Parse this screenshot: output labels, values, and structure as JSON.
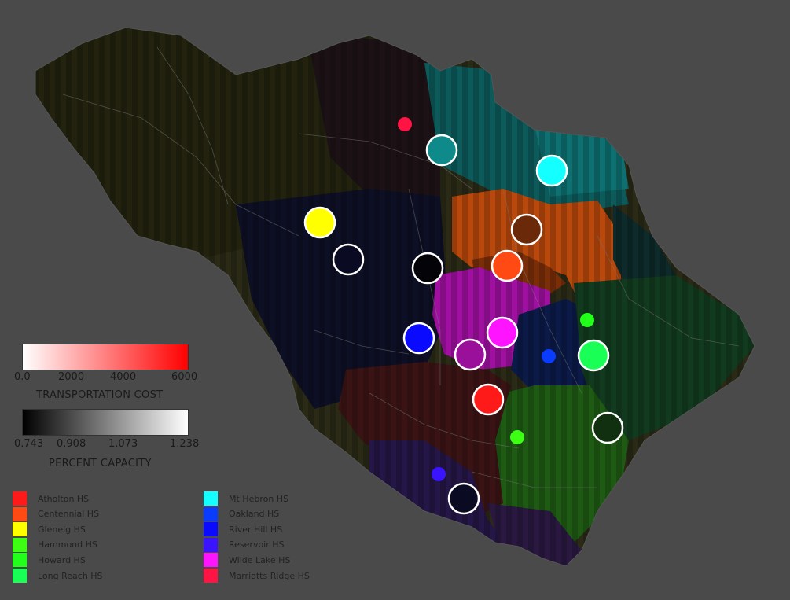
{
  "legend_cost": {
    "title": "TRANSPORTATION COST",
    "ticks": [
      "0.0",
      "2000",
      "4000",
      "6000"
    ]
  },
  "legend_capacity": {
    "title": "PERCENT  CAPACITY",
    "ticks": [
      "0.743",
      "0.908",
      "1.073",
      "1.238"
    ]
  },
  "schools_left": [
    {
      "label": "Atholton HS",
      "color": "#ff1a1a"
    },
    {
      "label": "Centennial HS",
      "color": "#ff4a14"
    },
    {
      "label": "Glenelg HS",
      "color": "#ffff00"
    },
    {
      "label": "Hammond HS",
      "color": "#3cff14"
    },
    {
      "label": "Howard HS",
      "color": "#22ff1a"
    },
    {
      "label": "Long Reach HS",
      "color": "#19ff55"
    }
  ],
  "schools_right": [
    {
      "label": "Mt Hebron HS",
      "color": "#14ffff"
    },
    {
      "label": "Oakland HS",
      "color": "#0a3cff"
    },
    {
      "label": "River Hill HS",
      "color": "#0a0aff"
    },
    {
      "label": "Reservoir HS",
      "color": "#3a14ff"
    },
    {
      "label": "Wilde Lake HS",
      "color": "#ff14ff"
    },
    {
      "label": "Marriotts Ridge HS",
      "color": "#ff1444"
    }
  ],
  "markers": [
    {
      "school": "Marriotts Ridge HS",
      "color": "#ff1444",
      "size": "small",
      "outline": false
    },
    {
      "school": "Mt Hebron HS",
      "color": "#0f8a8a",
      "size": "large",
      "outline": true
    },
    {
      "school": "Mt Hebron HS",
      "color": "#14ffff",
      "size": "large",
      "outline": true
    },
    {
      "school": "Glenelg HS",
      "color": "#ffff00",
      "size": "large",
      "outline": true
    },
    {
      "school": "",
      "color": "#0a0a22",
      "size": "large",
      "outline": true
    },
    {
      "school": "",
      "color": "#040408",
      "size": "large",
      "outline": true
    },
    {
      "school": "",
      "color": "#6a2a0a",
      "size": "large",
      "outline": true
    },
    {
      "school": "Centennial HS",
      "color": "#ff4a14",
      "size": "large",
      "outline": true
    },
    {
      "school": "River Hill HS",
      "color": "#0a0aff",
      "size": "large",
      "outline": true
    },
    {
      "school": "Wilde Lake HS",
      "color": "#ff14ff",
      "size": "large",
      "outline": true
    },
    {
      "school": "",
      "color": "#9a109a",
      "size": "large",
      "outline": true
    },
    {
      "school": "Howard HS",
      "color": "#22ff1a",
      "size": "small",
      "outline": false
    },
    {
      "school": "Oakland HS",
      "color": "#0a3cff",
      "size": "small",
      "outline": false
    },
    {
      "school": "Long Reach HS",
      "color": "#19ff55",
      "size": "large",
      "outline": true
    },
    {
      "school": "Atholton HS",
      "color": "#ff1a1a",
      "size": "large",
      "outline": true
    },
    {
      "school": "",
      "color": "#103010",
      "size": "large",
      "outline": true
    },
    {
      "school": "Hammond HS",
      "color": "#3cff14",
      "size": "small",
      "outline": false
    },
    {
      "school": "Reservoir HS",
      "color": "#3a14ff",
      "size": "small",
      "outline": false
    },
    {
      "school": "",
      "color": "#0a0a22",
      "size": "large",
      "outline": true
    }
  ]
}
